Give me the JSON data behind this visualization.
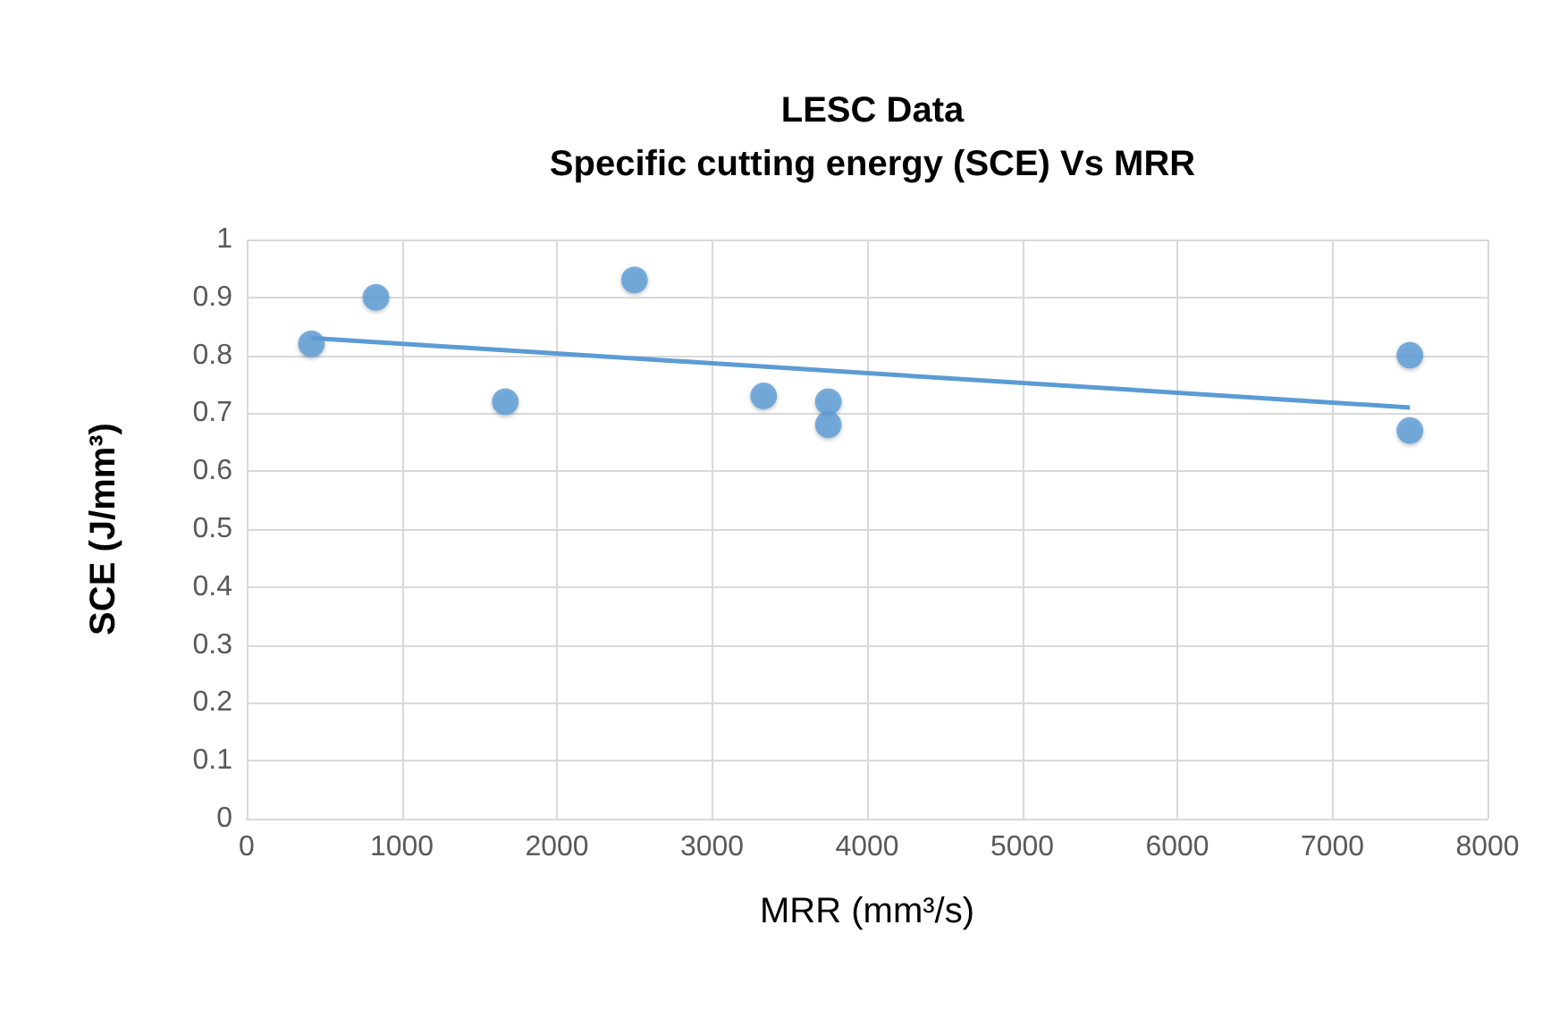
{
  "chart_data": {
    "type": "scatter",
    "title": "LESC Data\nSpecific cutting energy (SCE) Vs MRR",
    "xlabel": "MRR (mm³/s)",
    "ylabel": "SCE (J/mm³)",
    "xlim": [
      0,
      8000
    ],
    "xticks": [
      0,
      1000,
      2000,
      3000,
      4000,
      5000,
      6000,
      7000,
      8000
    ],
    "ylim": [
      0,
      1
    ],
    "yticks": [
      0,
      0.1,
      0.2,
      0.3,
      0.4,
      0.5,
      0.6,
      0.7,
      0.8,
      0.9,
      1
    ],
    "grid": true,
    "marker": "circle",
    "series": [
      {
        "color": "#5b9bd5",
        "x": [
          417,
          833,
          1667,
          2500,
          3333,
          3750,
          3750,
          7500,
          7500
        ],
        "values": [
          0.82,
          0.9,
          0.72,
          0.93,
          0.73,
          0.72,
          0.68,
          0.8,
          0.67
        ]
      },
      {
        "type": "line",
        "marker": "none",
        "color": "#5b9bd5",
        "x": [
          417,
          7500
        ],
        "values": [
          0.83,
          0.71
        ]
      }
    ]
  }
}
